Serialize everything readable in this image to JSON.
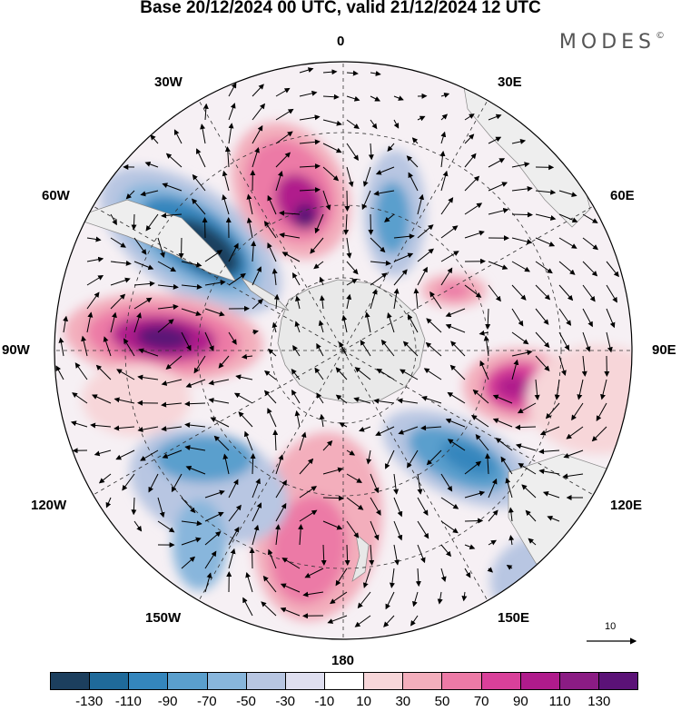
{
  "header": {
    "title": "Base 20/12/2024 00 UTC, valid 21/12/2024 12 UTC",
    "brand": "MODES",
    "brand_mark": "©"
  },
  "map": {
    "projection": "polar stereographic, south pole",
    "longitude_labels": {
      "top": "0",
      "top_right": "30E",
      "upper_right": "60E",
      "right": "90E",
      "lower_right": "120E",
      "bottom_right": "150E",
      "bottom": "180",
      "bottom_left": "150W",
      "lower_left": "120W",
      "left": "90W",
      "upper_left": "60W",
      "top_left": "30W"
    },
    "reference_vector": "10"
  },
  "colorbar": {
    "ticks": [
      "-130",
      "-110",
      "-90",
      "-70",
      "-50",
      "-30",
      "-10",
      "10",
      "30",
      "50",
      "70",
      "90",
      "110",
      "130"
    ],
    "colors": [
      "#1c3f5e",
      "#1f6a9a",
      "#3486bd",
      "#5a9fcd",
      "#88b6dc",
      "#b8c6e2",
      "#dfdff0",
      "#ffffff",
      "#f7d6d9",
      "#f3aebc",
      "#ec7aa6",
      "#d9409a",
      "#b01b8c",
      "#8b1c84",
      "#5b1277"
    ]
  }
}
